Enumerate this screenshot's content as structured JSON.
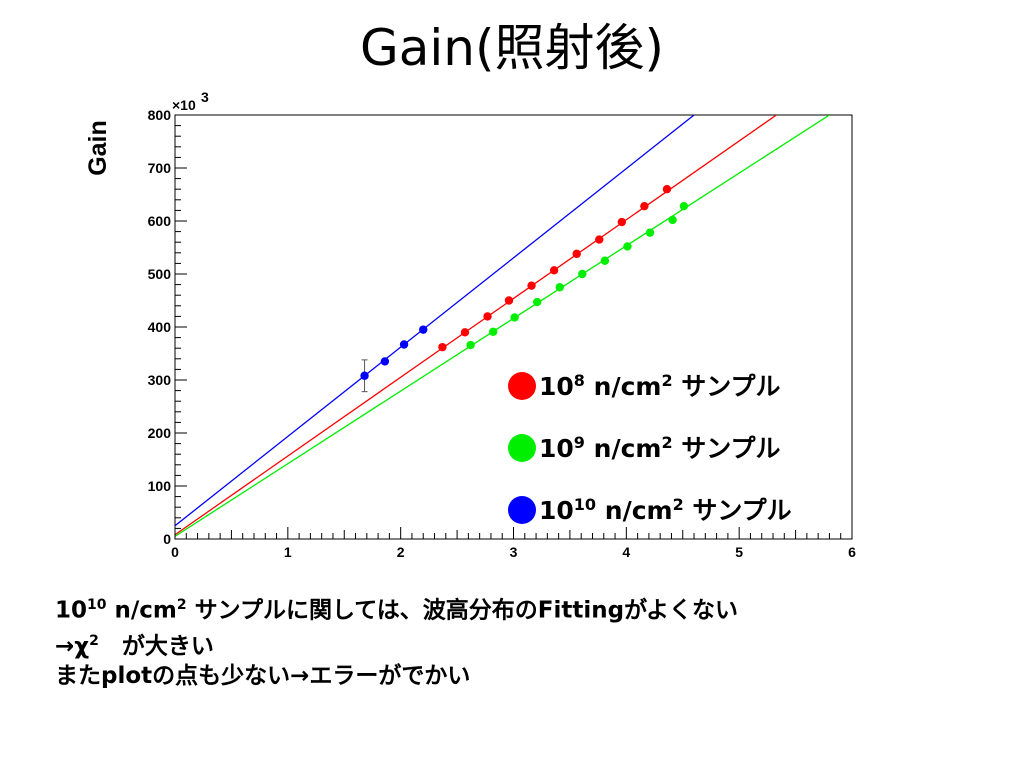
{
  "slide": {
    "title": "Gain(照射後)"
  },
  "chart_data": {
    "type": "scatter",
    "title": "",
    "xlabel": "",
    "ylabel": "Gain",
    "y_multiplier_label": "×10",
    "y_multiplier_exp": "3",
    "xlim": [
      0,
      6
    ],
    "ylim": [
      0,
      800
    ],
    "x_ticks": [
      0,
      1,
      2,
      3,
      4,
      5,
      6
    ],
    "y_ticks": [
      0,
      100,
      200,
      300,
      400,
      500,
      600,
      700,
      800
    ],
    "grid": false,
    "legend_position": "bottom-right",
    "series": [
      {
        "name_base": "10",
        "name_exp": "8",
        "name_unit": "n/cm",
        "name_unit_exp": "2",
        "name_suffix": "サンプル",
        "color": "#ff0000",
        "x": [
          2.37,
          2.57,
          2.77,
          2.96,
          3.16,
          3.36,
          3.56,
          3.76,
          3.96,
          4.16,
          4.36
        ],
        "y": [
          362,
          390,
          420,
          450,
          478,
          507,
          538,
          565,
          598,
          628,
          660
        ],
        "fit": {
          "x1": 0,
          "y1": 8,
          "x2": 5.33,
          "y2": 800
        }
      },
      {
        "name_base": "10",
        "name_exp": "9",
        "name_unit": "n/cm",
        "name_unit_exp": "2",
        "name_suffix": "サンプル",
        "color": "#00ee00",
        "x": [
          2.62,
          2.82,
          3.01,
          3.21,
          3.41,
          3.61,
          3.81,
          4.01,
          4.21,
          4.41,
          4.51
        ],
        "y": [
          366,
          391,
          418,
          447,
          475,
          500,
          525,
          552,
          578,
          602,
          628
        ],
        "fit": {
          "x1": 0,
          "y1": 5,
          "x2": 5.8,
          "y2": 800
        }
      },
      {
        "name_base": "10",
        "name_exp": "10",
        "name_unit": "n/cm",
        "name_unit_exp": "2",
        "name_suffix": "サンプル",
        "color": "#0000ff",
        "x": [
          1.68,
          1.86,
          2.03,
          2.2
        ],
        "y": [
          308,
          335,
          367,
          395
        ],
        "error": [
          30,
          0,
          0,
          0
        ],
        "fit": {
          "x1": 0,
          "y1": 25,
          "x2": 4.6,
          "y2": 800
        }
      }
    ]
  },
  "notes": {
    "line1_a": "10",
    "line1_b": "10",
    "line1_c": " n/cm",
    "line1_d": "2",
    "line1_e": " サンプルに関しては、波高分布のFittingがよくない",
    "line2_a": "→χ",
    "line2_b": "2",
    "line2_c": "　が大きい",
    "line3": "またplotの点も少ない→エラーがでかい"
  }
}
